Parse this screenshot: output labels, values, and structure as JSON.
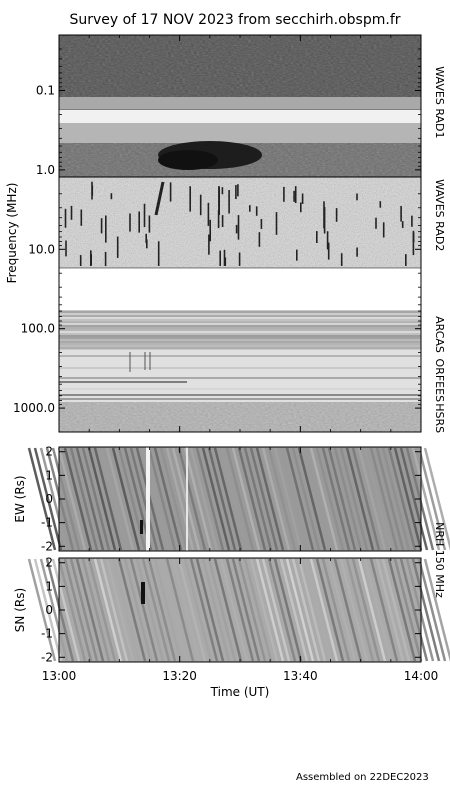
{
  "title": "Survey of 17 NOV 2023 from secchirh.obspm.fr",
  "footer": "Assembled on 22DEC2023",
  "chart_data": {
    "type": "heatmap",
    "panels": [
      {
        "id": "spectrum",
        "ylabel": "Frequency (MHz)",
        "yscale": "log",
        "ylim": [
          0.02,
          2000
        ],
        "y_ticks": [
          {
            "v": 0.1,
            "label": "0.1"
          },
          {
            "v": 1,
            "label": "1.0"
          },
          {
            "v": 10,
            "label": "10.0"
          },
          {
            "v": 100,
            "label": "100.0"
          },
          {
            "v": 1000,
            "label": "1000.0"
          }
        ],
        "instruments": [
          {
            "name": "WAVES RAD1",
            "f_range": [
              0.02,
              1.0
            ]
          },
          {
            "name": "WAVES RAD2",
            "f_range": [
              1.0,
              13.8
            ]
          },
          {
            "name": "ARCAS",
            "f_range": [
              70,
              200
            ]
          },
          {
            "name": "ORFEES",
            "f_range": [
              200,
              1000
            ]
          },
          {
            "name": "HSRS",
            "f_range": [
              1000,
              1800
            ]
          }
        ]
      },
      {
        "id": "nrh_ew",
        "ylabel": "EW (Rs)",
        "ylim": [
          -2.2,
          2.2
        ],
        "y_ticks": [
          2,
          1,
          0,
          -1,
          -2
        ]
      },
      {
        "id": "nrh_sn",
        "ylabel": "SN (Rs)",
        "ylim": [
          -2.2,
          2.2
        ],
        "y_ticks": [
          2,
          1,
          0,
          -1,
          -2
        ]
      }
    ],
    "nrh_label": "NRH 150 MHz",
    "xlabel": "Time (UT)",
    "x_ticks": [
      "13:00",
      "13:20",
      "13:40",
      "14:00"
    ],
    "xlim": [
      "13:00",
      "14:00"
    ]
  }
}
